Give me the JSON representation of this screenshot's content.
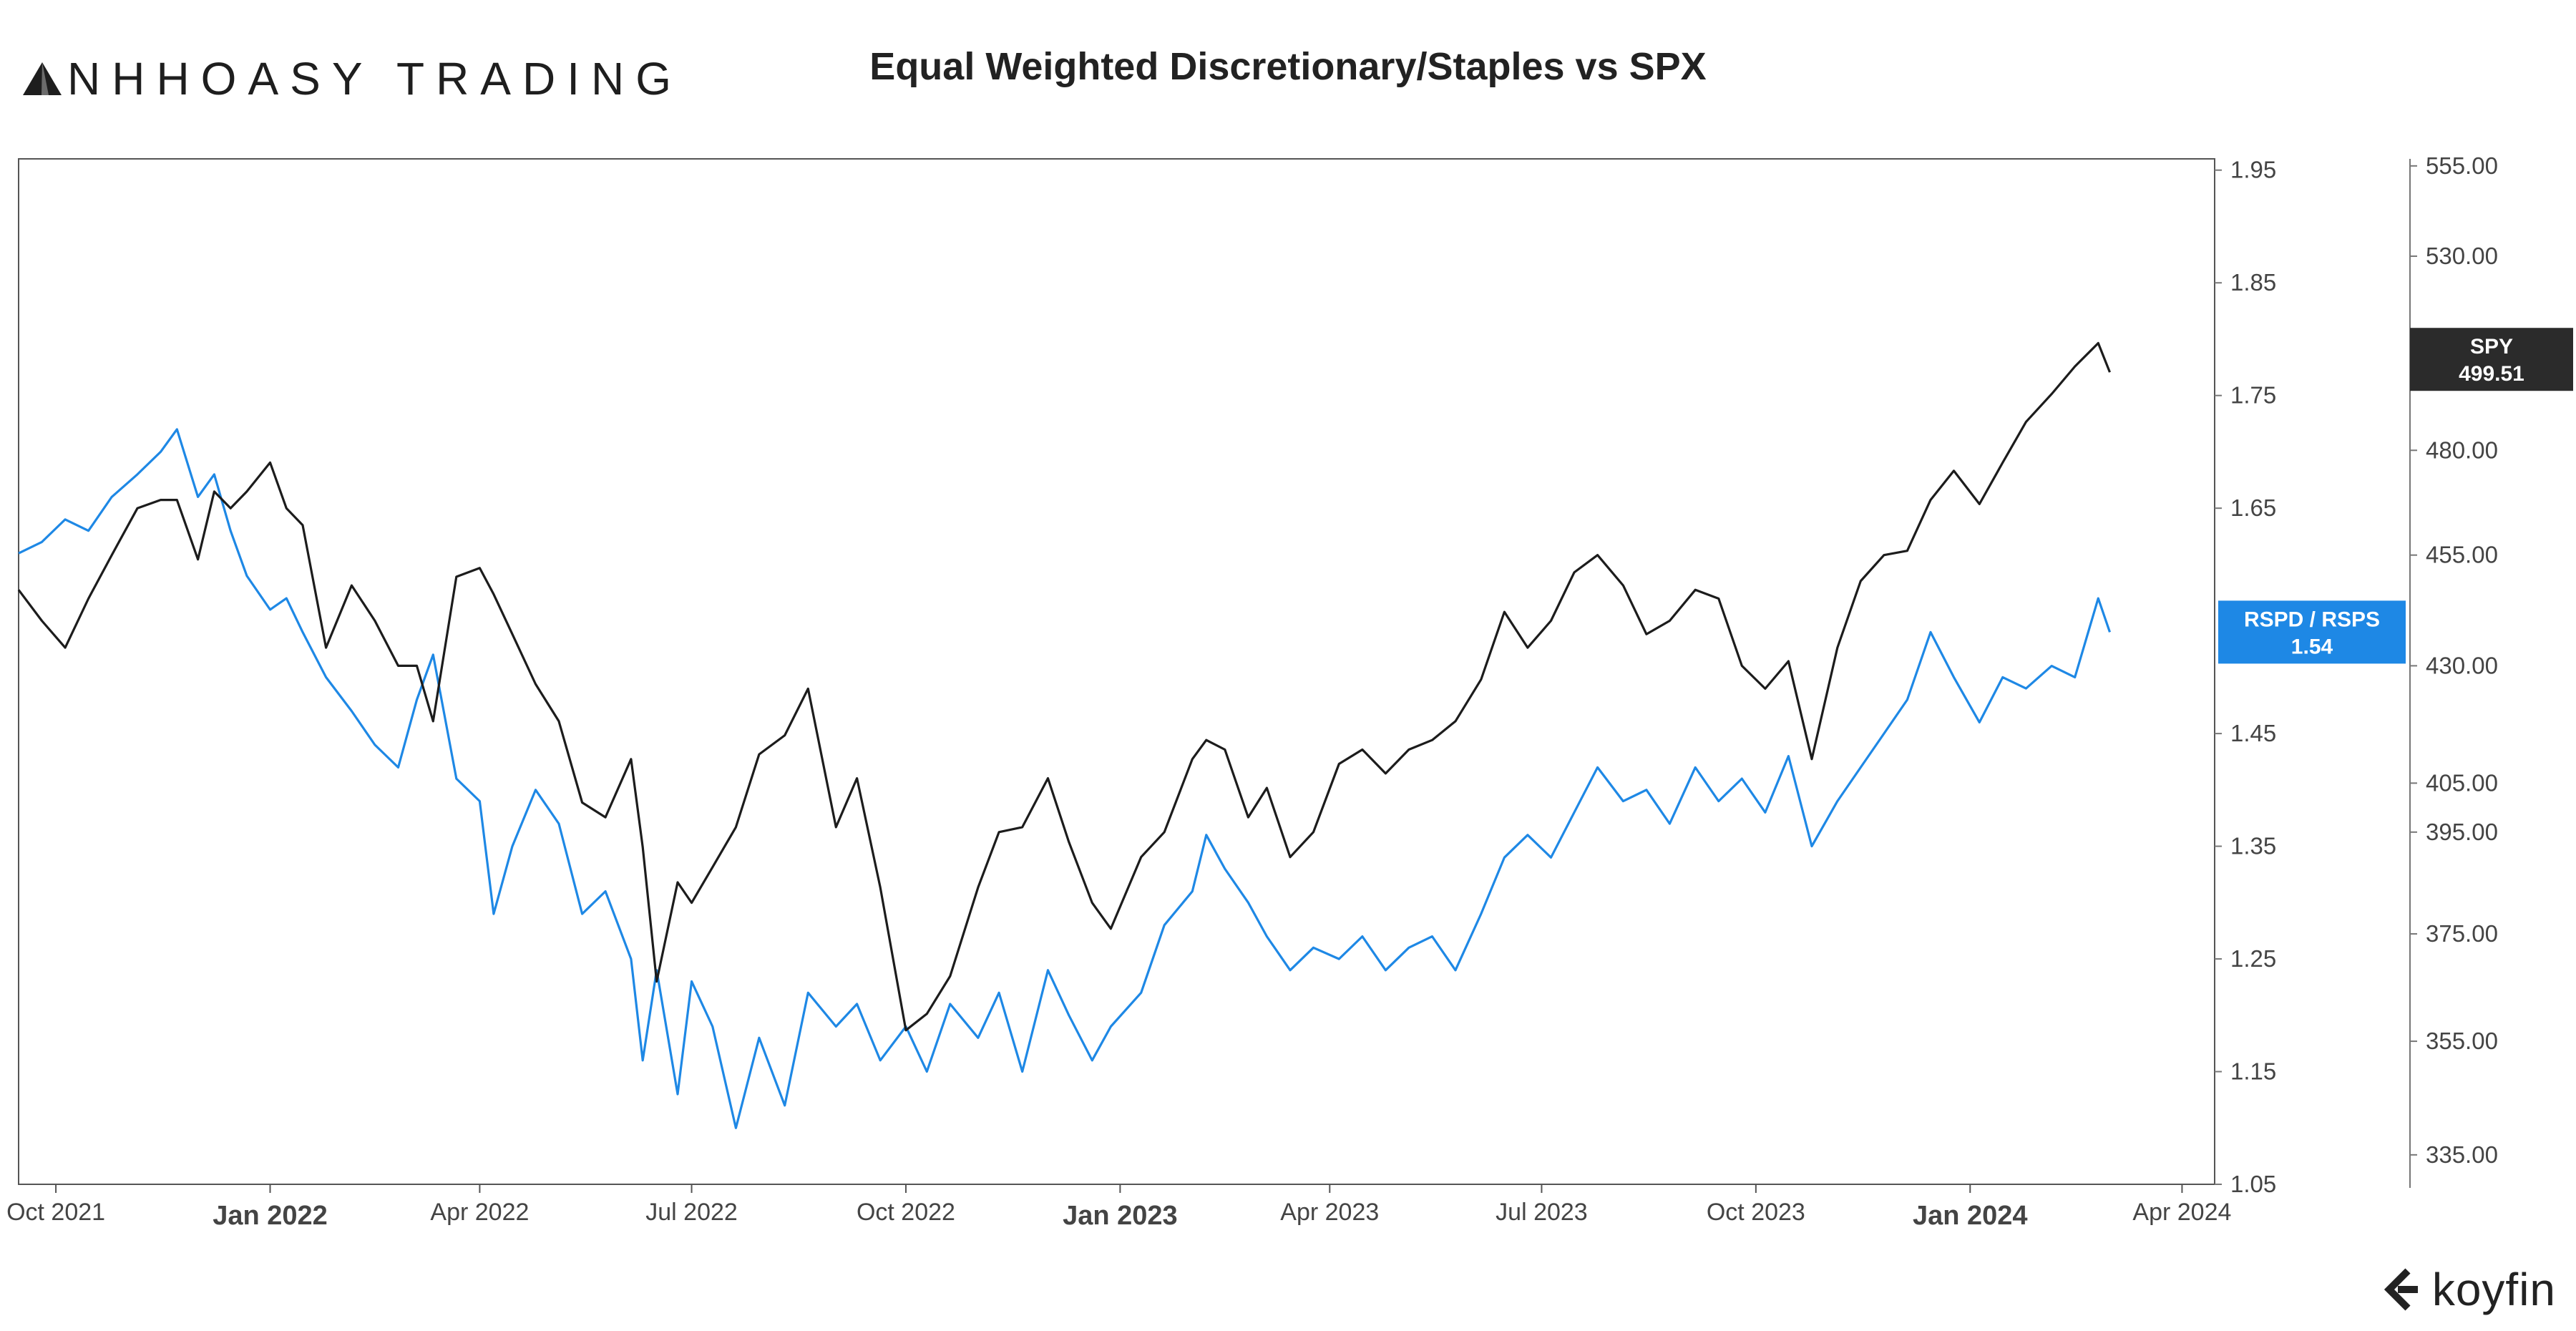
{
  "header": {
    "brand_name": "NHHOASY TRADING",
    "brand_logo_icon": "triangle-mountain-icon",
    "title": "Equal Weighted Discretionary/Staples vs SPX",
    "footer_logo_text": "koyfin",
    "footer_logo_icon": "koyfin-chevron-icon"
  },
  "chart_data": {
    "type": "line",
    "title": "Equal Weighted Discretionary/Staples vs SPX",
    "x_range": [
      "2021-09-15",
      "2024-04-15"
    ],
    "x_ticks": [
      {
        "date": "2021-10-01",
        "label": "Oct 2021",
        "major": false
      },
      {
        "date": "2022-01-01",
        "label": "Jan 2022",
        "major": true
      },
      {
        "date": "2022-04-01",
        "label": "Apr 2022",
        "major": false
      },
      {
        "date": "2022-07-01",
        "label": "Jul 2022",
        "major": false
      },
      {
        "date": "2022-10-01",
        "label": "Oct 2022",
        "major": false
      },
      {
        "date": "2023-01-01",
        "label": "Jan 2023",
        "major": true
      },
      {
        "date": "2023-04-01",
        "label": "Apr 2023",
        "major": false
      },
      {
        "date": "2023-07-01",
        "label": "Jul 2023",
        "major": false
      },
      {
        "date": "2023-10-01",
        "label": "Oct 2023",
        "major": false
      },
      {
        "date": "2024-01-01",
        "label": "Jan 2024",
        "major": true
      },
      {
        "date": "2024-04-01",
        "label": "Apr 2024",
        "major": false
      }
    ],
    "y_axis_left": {
      "series": "RSPD / RSPS",
      "range": [
        1.05,
        1.96
      ],
      "ticks": [
        1.05,
        1.15,
        1.25,
        1.35,
        1.45,
        1.65,
        1.75,
        1.85,
        1.95
      ],
      "tick_labels": [
        "1.05",
        "1.15",
        "1.25",
        "1.35",
        "1.45",
        "1.65",
        "1.75",
        "1.85",
        "1.95"
      ]
    },
    "y_axis_right": {
      "series": "SPY",
      "scale": "log",
      "range": [
        330,
        557
      ],
      "ticks": [
        335,
        355,
        375,
        395,
        405,
        430,
        455,
        480,
        530,
        555
      ],
      "tick_labels": [
        "335.00",
        "355.00",
        "375.00",
        "395.00",
        "405.00",
        "430.00",
        "455.00",
        "480.00",
        "530.00",
        "555.00"
      ]
    },
    "grid": false,
    "legend": "none",
    "series": [
      {
        "name": "RSPD / RSPS",
        "color": "#1e88e5",
        "axis": "left",
        "last_value": "1.54",
        "points": [
          [
            "2021-09-15",
            1.61
          ],
          [
            "2021-09-25",
            1.62
          ],
          [
            "2021-10-05",
            1.64
          ],
          [
            "2021-10-15",
            1.63
          ],
          [
            "2021-10-25",
            1.66
          ],
          [
            "2021-11-05",
            1.68
          ],
          [
            "2021-11-15",
            1.7
          ],
          [
            "2021-11-22",
            1.72
          ],
          [
            "2021-12-01",
            1.66
          ],
          [
            "2021-12-08",
            1.68
          ],
          [
            "2021-12-15",
            1.63
          ],
          [
            "2021-12-22",
            1.59
          ],
          [
            "2022-01-01",
            1.56
          ],
          [
            "2022-01-08",
            1.57
          ],
          [
            "2022-01-15",
            1.54
          ],
          [
            "2022-01-25",
            1.5
          ],
          [
            "2022-02-05",
            1.47
          ],
          [
            "2022-02-15",
            1.44
          ],
          [
            "2022-02-25",
            1.42
          ],
          [
            "2022-03-05",
            1.48
          ],
          [
            "2022-03-12",
            1.52
          ],
          [
            "2022-03-22",
            1.41
          ],
          [
            "2022-04-01",
            1.39
          ],
          [
            "2022-04-07",
            1.29
          ],
          [
            "2022-04-15",
            1.35
          ],
          [
            "2022-04-25",
            1.4
          ],
          [
            "2022-05-05",
            1.37
          ],
          [
            "2022-05-15",
            1.29
          ],
          [
            "2022-05-25",
            1.31
          ],
          [
            "2022-06-05",
            1.25
          ],
          [
            "2022-06-10",
            1.16
          ],
          [
            "2022-06-16",
            1.24
          ],
          [
            "2022-06-25",
            1.13
          ],
          [
            "2022-07-01",
            1.23
          ],
          [
            "2022-07-10",
            1.19
          ],
          [
            "2022-07-20",
            1.1
          ],
          [
            "2022-07-30",
            1.18
          ],
          [
            "2022-08-10",
            1.12
          ],
          [
            "2022-08-20",
            1.22
          ],
          [
            "2022-09-01",
            1.19
          ],
          [
            "2022-09-10",
            1.21
          ],
          [
            "2022-09-20",
            1.16
          ],
          [
            "2022-10-01",
            1.19
          ],
          [
            "2022-10-10",
            1.15
          ],
          [
            "2022-10-20",
            1.21
          ],
          [
            "2022-11-01",
            1.18
          ],
          [
            "2022-11-10",
            1.22
          ],
          [
            "2022-11-20",
            1.15
          ],
          [
            "2022-12-01",
            1.24
          ],
          [
            "2022-12-10",
            1.2
          ],
          [
            "2022-12-20",
            1.16
          ],
          [
            "2022-12-28",
            1.19
          ],
          [
            "2023-01-10",
            1.22
          ],
          [
            "2023-01-20",
            1.28
          ],
          [
            "2023-02-01",
            1.31
          ],
          [
            "2023-02-07",
            1.36
          ],
          [
            "2023-02-15",
            1.33
          ],
          [
            "2023-02-25",
            1.3
          ],
          [
            "2023-03-05",
            1.27
          ],
          [
            "2023-03-15",
            1.24
          ],
          [
            "2023-03-25",
            1.26
          ],
          [
            "2023-04-05",
            1.25
          ],
          [
            "2023-04-15",
            1.27
          ],
          [
            "2023-04-25",
            1.24
          ],
          [
            "2023-05-05",
            1.26
          ],
          [
            "2023-05-15",
            1.27
          ],
          [
            "2023-05-25",
            1.24
          ],
          [
            "2023-06-05",
            1.29
          ],
          [
            "2023-06-15",
            1.34
          ],
          [
            "2023-06-25",
            1.36
          ],
          [
            "2023-07-05",
            1.34
          ],
          [
            "2023-07-15",
            1.38
          ],
          [
            "2023-07-25",
            1.42
          ],
          [
            "2023-08-05",
            1.39
          ],
          [
            "2023-08-15",
            1.4
          ],
          [
            "2023-08-25",
            1.37
          ],
          [
            "2023-09-05",
            1.42
          ],
          [
            "2023-09-15",
            1.39
          ],
          [
            "2023-09-25",
            1.41
          ],
          [
            "2023-10-05",
            1.38
          ],
          [
            "2023-10-15",
            1.43
          ],
          [
            "2023-10-25",
            1.35
          ],
          [
            "2023-11-05",
            1.39
          ],
          [
            "2023-11-15",
            1.42
          ],
          [
            "2023-11-25",
            1.45
          ],
          [
            "2023-12-05",
            1.48
          ],
          [
            "2023-12-15",
            1.54
          ],
          [
            "2023-12-25",
            1.5
          ],
          [
            "2024-01-05",
            1.46
          ],
          [
            "2024-01-15",
            1.5
          ],
          [
            "2024-01-25",
            1.49
          ],
          [
            "2024-02-05",
            1.51
          ],
          [
            "2024-02-15",
            1.5
          ],
          [
            "2024-02-25",
            1.57
          ],
          [
            "2024-03-01",
            1.54
          ]
        ]
      },
      {
        "name": "SPY",
        "color": "#1c1c1c",
        "axis": "right",
        "last_value": "499.51",
        "points": [
          [
            "2021-09-15",
            447
          ],
          [
            "2021-09-25",
            440
          ],
          [
            "2021-10-05",
            434
          ],
          [
            "2021-10-15",
            445
          ],
          [
            "2021-10-25",
            455
          ],
          [
            "2021-11-05",
            466
          ],
          [
            "2021-11-15",
            468
          ],
          [
            "2021-11-22",
            468
          ],
          [
            "2021-12-01",
            454
          ],
          [
            "2021-12-08",
            470
          ],
          [
            "2021-12-15",
            466
          ],
          [
            "2021-12-22",
            470
          ],
          [
            "2022-01-01",
            477
          ],
          [
            "2022-01-08",
            466
          ],
          [
            "2022-01-15",
            462
          ],
          [
            "2022-01-25",
            434
          ],
          [
            "2022-02-05",
            448
          ],
          [
            "2022-02-15",
            440
          ],
          [
            "2022-02-25",
            430
          ],
          [
            "2022-03-05",
            430
          ],
          [
            "2022-03-12",
            418
          ],
          [
            "2022-03-22",
            450
          ],
          [
            "2022-04-01",
            452
          ],
          [
            "2022-04-07",
            446
          ],
          [
            "2022-04-15",
            437
          ],
          [
            "2022-04-25",
            426
          ],
          [
            "2022-05-05",
            418
          ],
          [
            "2022-05-15",
            401
          ],
          [
            "2022-05-25",
            398
          ],
          [
            "2022-06-05",
            410
          ],
          [
            "2022-06-10",
            392
          ],
          [
            "2022-06-16",
            366
          ],
          [
            "2022-06-25",
            385
          ],
          [
            "2022-07-01",
            381
          ],
          [
            "2022-07-10",
            388
          ],
          [
            "2022-07-20",
            396
          ],
          [
            "2022-07-30",
            411
          ],
          [
            "2022-08-10",
            415
          ],
          [
            "2022-08-20",
            425
          ],
          [
            "2022-09-01",
            396
          ],
          [
            "2022-09-10",
            406
          ],
          [
            "2022-09-20",
            384
          ],
          [
            "2022-10-01",
            357
          ],
          [
            "2022-10-10",
            360
          ],
          [
            "2022-10-20",
            367
          ],
          [
            "2022-11-01",
            384
          ],
          [
            "2022-11-10",
            395
          ],
          [
            "2022-11-20",
            396
          ],
          [
            "2022-12-01",
            406
          ],
          [
            "2022-12-10",
            393
          ],
          [
            "2022-12-20",
            381
          ],
          [
            "2022-12-28",
            376
          ],
          [
            "2023-01-10",
            390
          ],
          [
            "2023-01-20",
            395
          ],
          [
            "2023-02-01",
            410
          ],
          [
            "2023-02-07",
            414
          ],
          [
            "2023-02-15",
            412
          ],
          [
            "2023-02-25",
            398
          ],
          [
            "2023-03-05",
            404
          ],
          [
            "2023-03-15",
            390
          ],
          [
            "2023-03-25",
            395
          ],
          [
            "2023-04-05",
            409
          ],
          [
            "2023-04-15",
            412
          ],
          [
            "2023-04-25",
            407
          ],
          [
            "2023-05-05",
            412
          ],
          [
            "2023-05-15",
            414
          ],
          [
            "2023-05-25",
            418
          ],
          [
            "2023-06-05",
            427
          ],
          [
            "2023-06-15",
            442
          ],
          [
            "2023-06-25",
            434
          ],
          [
            "2023-07-05",
            440
          ],
          [
            "2023-07-15",
            451
          ],
          [
            "2023-07-25",
            455
          ],
          [
            "2023-08-05",
            448
          ],
          [
            "2023-08-15",
            437
          ],
          [
            "2023-08-25",
            440
          ],
          [
            "2023-09-05",
            447
          ],
          [
            "2023-09-15",
            445
          ],
          [
            "2023-09-25",
            430
          ],
          [
            "2023-10-05",
            425
          ],
          [
            "2023-10-15",
            431
          ],
          [
            "2023-10-25",
            410
          ],
          [
            "2023-11-05",
            434
          ],
          [
            "2023-11-15",
            449
          ],
          [
            "2023-11-25",
            455
          ],
          [
            "2023-12-05",
            456
          ],
          [
            "2023-12-15",
            468
          ],
          [
            "2023-12-25",
            475
          ],
          [
            "2024-01-05",
            467
          ],
          [
            "2024-01-15",
            477
          ],
          [
            "2024-01-25",
            487
          ],
          [
            "2024-02-05",
            494
          ],
          [
            "2024-02-15",
            501
          ],
          [
            "2024-02-25",
            507
          ],
          [
            "2024-03-01",
            499.51
          ]
        ]
      }
    ]
  }
}
